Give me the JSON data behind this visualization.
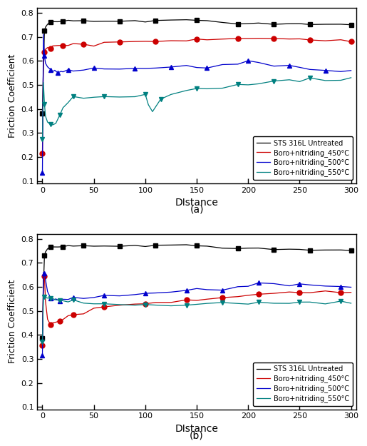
{
  "title_a": "(a)",
  "title_b": "(b)",
  "xlabel": "DIstance",
  "ylabel": "Friction Coefficient",
  "xlim": [
    -5,
    305
  ],
  "ylim": [
    0.09,
    0.82
  ],
  "yticks": [
    0.1,
    0.2,
    0.3,
    0.4,
    0.5,
    0.6,
    0.7,
    0.8
  ],
  "xticks": [
    0,
    50,
    100,
    150,
    200,
    250,
    300
  ],
  "legend_labels": [
    "STS 316L Untreated",
    "Boro+nitriding_450°C",
    "Boro+nitriding_500°C",
    "Boro+nitriding_550°C"
  ],
  "colors": [
    "#000000",
    "#cc0000",
    "#0000cc",
    "#008080"
  ],
  "markers": [
    "s",
    "o",
    "^",
    "v"
  ],
  "figsize": [
    5.15,
    6.25
  ],
  "dpi": 100,
  "a_untreated_x": [
    0,
    1,
    2,
    3,
    5,
    8,
    10,
    15,
    20,
    25,
    30,
    40,
    50,
    60,
    75,
    90,
    100,
    110,
    125,
    140,
    150,
    160,
    175,
    190,
    200,
    210,
    225,
    240,
    250,
    260,
    275,
    290,
    300
  ],
  "a_untreated_y": [
    0.382,
    0.58,
    0.725,
    0.74,
    0.752,
    0.758,
    0.762,
    0.764,
    0.766,
    0.766,
    0.767,
    0.766,
    0.765,
    0.766,
    0.767,
    0.766,
    0.765,
    0.766,
    0.767,
    0.766,
    0.767,
    0.766,
    0.765,
    0.758,
    0.756,
    0.756,
    0.755,
    0.754,
    0.753,
    0.752,
    0.751,
    0.75,
    0.749
  ],
  "a_450_x": [
    0,
    1,
    2,
    3,
    5,
    8,
    10,
    15,
    20,
    25,
    30,
    40,
    50,
    60,
    75,
    90,
    100,
    110,
    125,
    140,
    150,
    160,
    175,
    190,
    200,
    210,
    225,
    240,
    250,
    260,
    275,
    290,
    300
  ],
  "a_450_y": [
    0.215,
    0.62,
    0.635,
    0.648,
    0.655,
    0.658,
    0.66,
    0.662,
    0.664,
    0.666,
    0.668,
    0.67,
    0.672,
    0.674,
    0.677,
    0.679,
    0.68,
    0.681,
    0.683,
    0.686,
    0.688,
    0.69,
    0.692,
    0.693,
    0.694,
    0.693,
    0.692,
    0.69,
    0.688,
    0.687,
    0.685,
    0.683,
    0.682
  ],
  "a_500_x": [
    0,
    1,
    2,
    3,
    5,
    8,
    10,
    12,
    15,
    18,
    20,
    25,
    30,
    40,
    50,
    60,
    75,
    90,
    100,
    110,
    125,
    140,
    150,
    160,
    175,
    190,
    200,
    210,
    225,
    240,
    250,
    260,
    275,
    290,
    300
  ],
  "a_500_y": [
    0.135,
    0.71,
    0.62,
    0.59,
    0.575,
    0.565,
    0.56,
    0.557,
    0.556,
    0.556,
    0.557,
    0.56,
    0.563,
    0.566,
    0.57,
    0.572,
    0.57,
    0.571,
    0.572,
    0.574,
    0.575,
    0.578,
    0.578,
    0.582,
    0.586,
    0.59,
    0.592,
    0.59,
    0.584,
    0.578,
    0.572,
    0.565,
    0.56,
    0.557,
    0.556
  ],
  "a_550_x": [
    0,
    1,
    2,
    3,
    5,
    8,
    10,
    13,
    17,
    20,
    25,
    30,
    40,
    50,
    60,
    75,
    90,
    100,
    103,
    107,
    115,
    125,
    140,
    150,
    160,
    175,
    190,
    200,
    210,
    225,
    240,
    250,
    260,
    275,
    290,
    300
  ],
  "a_550_y": [
    0.275,
    0.51,
    0.42,
    0.37,
    0.345,
    0.332,
    0.33,
    0.34,
    0.375,
    0.405,
    0.43,
    0.442,
    0.448,
    0.452,
    0.452,
    0.452,
    0.455,
    0.46,
    0.42,
    0.395,
    0.445,
    0.46,
    0.473,
    0.478,
    0.483,
    0.49,
    0.497,
    0.502,
    0.508,
    0.513,
    0.518,
    0.52,
    0.521,
    0.521,
    0.521,
    0.521
  ],
  "b_untreated_x": [
    0,
    1,
    2,
    3,
    5,
    8,
    10,
    15,
    20,
    25,
    30,
    40,
    50,
    60,
    75,
    90,
    100,
    110,
    125,
    140,
    150,
    160,
    175,
    190,
    200,
    210,
    225,
    240,
    250,
    260,
    275,
    290,
    300
  ],
  "b_untreated_y": [
    0.385,
    0.6,
    0.73,
    0.745,
    0.758,
    0.763,
    0.765,
    0.767,
    0.768,
    0.769,
    0.77,
    0.77,
    0.77,
    0.771,
    0.771,
    0.771,
    0.771,
    0.771,
    0.771,
    0.77,
    0.769,
    0.768,
    0.766,
    0.764,
    0.762,
    0.76,
    0.758,
    0.756,
    0.754,
    0.753,
    0.752,
    0.751,
    0.75
  ],
  "b_450_x": [
    0,
    1,
    2,
    3,
    5,
    8,
    10,
    13,
    17,
    20,
    25,
    30,
    40,
    50,
    60,
    75,
    90,
    100,
    110,
    125,
    140,
    150,
    160,
    175,
    190,
    200,
    210,
    225,
    240,
    250,
    260,
    275,
    290,
    300
  ],
  "b_450_y": [
    0.355,
    0.655,
    0.645,
    0.54,
    0.465,
    0.448,
    0.448,
    0.451,
    0.458,
    0.466,
    0.476,
    0.485,
    0.498,
    0.508,
    0.515,
    0.522,
    0.527,
    0.53,
    0.534,
    0.538,
    0.543,
    0.546,
    0.55,
    0.555,
    0.56,
    0.564,
    0.568,
    0.572,
    0.575,
    0.576,
    0.577,
    0.578,
    0.578,
    0.578
  ],
  "b_500_x": [
    0,
    1,
    2,
    3,
    5,
    8,
    10,
    13,
    17,
    20,
    25,
    30,
    40,
    50,
    60,
    75,
    90,
    100,
    110,
    125,
    140,
    150,
    160,
    175,
    190,
    200,
    210,
    225,
    240,
    250,
    260,
    275,
    290,
    300
  ],
  "b_500_y": [
    0.315,
    0.66,
    0.655,
    0.63,
    0.58,
    0.555,
    0.548,
    0.546,
    0.546,
    0.548,
    0.55,
    0.553,
    0.557,
    0.56,
    0.564,
    0.568,
    0.572,
    0.575,
    0.578,
    0.582,
    0.586,
    0.59,
    0.594,
    0.598,
    0.602,
    0.606,
    0.608,
    0.61,
    0.61,
    0.609,
    0.607,
    0.604,
    0.601,
    0.6
  ],
  "b_550_x": [
    0,
    1,
    2,
    3,
    5,
    8,
    10,
    13,
    17,
    20,
    25,
    30,
    40,
    50,
    60,
    75,
    90,
    100,
    110,
    125,
    140,
    150,
    160,
    175,
    190,
    200,
    210,
    225,
    240,
    250,
    260,
    275,
    290,
    300
  ],
  "b_550_y": [
    0.37,
    0.555,
    0.558,
    0.556,
    0.553,
    0.55,
    0.548,
    0.546,
    0.544,
    0.542,
    0.54,
    0.538,
    0.535,
    0.532,
    0.53,
    0.528,
    0.527,
    0.526,
    0.526,
    0.526,
    0.527,
    0.527,
    0.528,
    0.529,
    0.53,
    0.531,
    0.532,
    0.533,
    0.534,
    0.534,
    0.534,
    0.534,
    0.534,
    0.534
  ]
}
